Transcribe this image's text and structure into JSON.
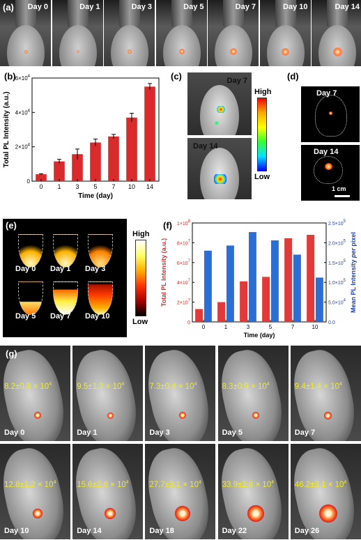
{
  "panels": {
    "a": {
      "label": "(a)",
      "days": [
        "Day 0",
        "Day 1",
        "Day 3",
        "Day 5",
        "Day 7",
        "Day 10",
        "Day 14"
      ]
    },
    "b": {
      "label": "(b)"
    },
    "c": {
      "label": "(c)",
      "days": [
        "Day 7",
        "Day 14"
      ],
      "scale_high": "High",
      "scale_low": "Low"
    },
    "d": {
      "label": "(d)",
      "days": [
        "Day 7",
        "Day 14"
      ],
      "scalebar": "1 cm"
    },
    "e": {
      "label": "(e)",
      "days": [
        "Day 0",
        "Day 1",
        "Day 3",
        "Day 5",
        "Day 7",
        "Day 10"
      ],
      "scale_high": "High",
      "scale_low": "Low"
    },
    "f": {
      "label": "(f)"
    },
    "g": {
      "label": "(g)",
      "tiles": [
        {
          "day": "Day 0",
          "value": "8.2±0.9 × 10",
          "exp": "4"
        },
        {
          "day": "Day 1",
          "value": "9.5±1.3 × 10",
          "exp": "4"
        },
        {
          "day": "Day 3",
          "value": "7.3±0.4 × 10",
          "exp": "4"
        },
        {
          "day": "Day 5",
          "value": "8.3±0.9 × 10",
          "exp": "4"
        },
        {
          "day": "Day 7",
          "value": "9.4±1.4 × 10",
          "exp": "4"
        },
        {
          "day": "Day 10",
          "value": "12.8±1.2 × 10",
          "exp": "4"
        },
        {
          "day": "Day 14",
          "value": "15.6±2.8 × 10",
          "exp": "4"
        },
        {
          "day": "Day 18",
          "value": "27.7±3.1 × 10",
          "exp": "4"
        },
        {
          "day": "Day 22",
          "value": "33.9±2.8 × 10",
          "exp": "4"
        },
        {
          "day": "Day 26",
          "value": "46.2±3.1 × 10",
          "exp": "4"
        }
      ]
    }
  },
  "chart_data": [
    {
      "type": "bar",
      "categories": [
        "0",
        "1",
        "3",
        "5",
        "7",
        "10",
        "14"
      ],
      "values": [
        4000,
        11500,
        15700,
        22500,
        26000,
        37000,
        55000
      ],
      "errors": [
        300,
        1200,
        3000,
        2000,
        1200,
        2500,
        1800
      ],
      "xlabel": "Time (day)",
      "ylabel": "Total PL Intensity (a.u.)",
      "ylim": [
        0,
        60000
      ],
      "yticks": [
        "0",
        "2×10",
        "4×10",
        "6×10"
      ],
      "ytick_exp": "4",
      "color": "#d92b2b"
    },
    {
      "type": "bar",
      "categories": [
        "0",
        "1",
        "3",
        "5",
        "7",
        "10"
      ],
      "xlabel": "Time (day)",
      "series": [
        {
          "axis": "left",
          "values": [
            13000000,
            20000000,
            41000000,
            45500000,
            84500000,
            88000000
          ],
          "color": "#e03a3a"
        },
        {
          "axis": "right",
          "values": [
            180000,
            193000,
            227000,
            206000,
            170000,
            112000
          ],
          "color": "#2a6fd6"
        }
      ],
      "ylabel_left": "Total PL Intensity (a.u.)",
      "ylabel_right_parts": [
        "Mean PL Intensity ",
        "per",
        " pixel"
      ],
      "ylim_left": [
        0,
        100000000
      ],
      "ylim_right": [
        0,
        250000
      ],
      "yticks_left": [
        "0",
        "2×10",
        "4×10",
        "6×10",
        "8×10",
        "1×10"
      ],
      "yticks_left_exp": [
        "",
        "7",
        "7",
        "7",
        "7",
        "8"
      ],
      "yticks_right": [
        "0.0",
        "5.0×10",
        "1.0×10",
        "1.5×10",
        "2.0×10",
        "2.5×10"
      ],
      "yticks_right_exp": [
        "",
        "4",
        "5",
        "5",
        "5",
        "5"
      ],
      "color_left": "#d92b2b",
      "color_right": "#1e3fb5"
    }
  ]
}
